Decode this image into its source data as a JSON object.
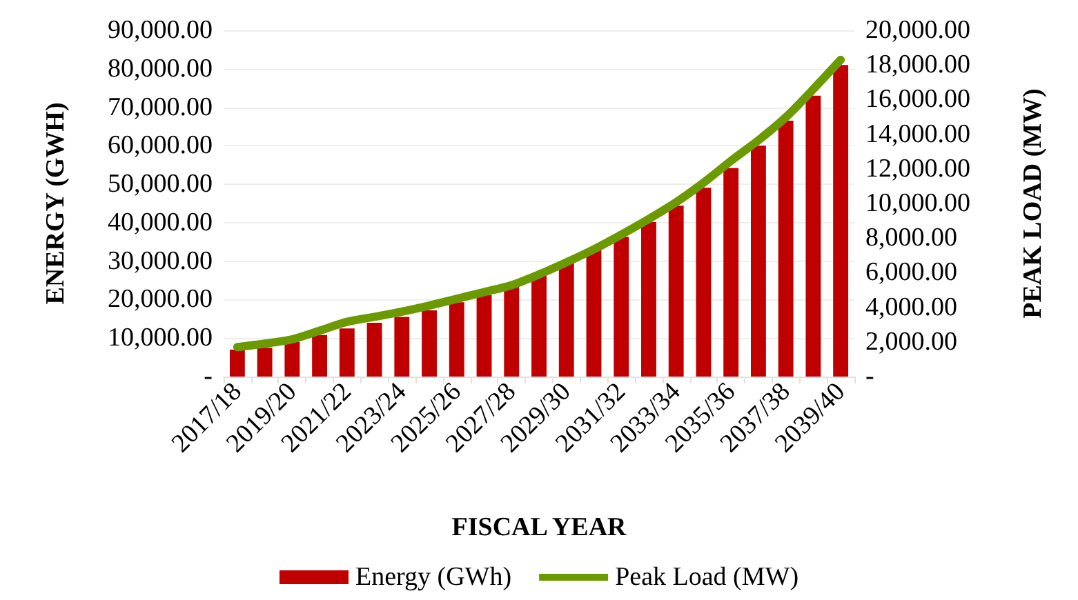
{
  "chart_data": {
    "type": "bar",
    "xlabel": "FISCAL YEAR",
    "ylabel": "ENERGY (GWH)",
    "y2label": "PEAK LOAD (MW)",
    "categories": [
      "2017/18",
      null,
      "2019/20",
      null,
      "2021/22",
      null,
      "2023/24",
      null,
      "2025/26",
      null,
      "2027/28",
      null,
      "2029/30",
      null,
      "2031/32",
      null,
      "2033/34",
      null,
      "2035/36",
      null,
      "2037/38",
      null,
      "2039/40"
    ],
    "series": [
      {
        "name": "Energy (GWh)",
        "color": "#c00000",
        "values": [
          7000,
          7500,
          9000,
          10800,
          12500,
          14000,
          15500,
          17200,
          19300,
          21200,
          23800,
          26500,
          29500,
          32800,
          36300,
          40200,
          44400,
          49100,
          54200,
          60000,
          66500,
          73000,
          81000
        ]
      },
      {
        "name": "Peak Load (MW)",
        "type": "line",
        "axis": "y2",
        "color": "#6a9a00",
        "marker": "none",
        "line_style": "solid",
        "values": [
          1700,
          1900,
          2150,
          2650,
          3160,
          3450,
          3750,
          4100,
          4490,
          4880,
          5280,
          5900,
          6600,
          7350,
          8200,
          9100,
          10070,
          11200,
          12460,
          13650,
          14980,
          16600,
          18300
        ]
      }
    ],
    "ylim": [
      0,
      90000
    ],
    "yticks": [
      {
        "value": 0,
        "label": "-"
      },
      {
        "value": 10000,
        "label": "10,000.00"
      },
      {
        "value": 20000,
        "label": "20,000.00"
      },
      {
        "value": 30000,
        "label": "30,000.00"
      },
      {
        "value": 40000,
        "label": "40,000.00"
      },
      {
        "value": 50000,
        "label": "50,000.00"
      },
      {
        "value": 60000,
        "label": "60,000.00"
      },
      {
        "value": 70000,
        "label": "70,000.00"
      },
      {
        "value": 80000,
        "label": "80,000.00"
      },
      {
        "value": 90000,
        "label": "90,000.00"
      }
    ],
    "y2lim": [
      0,
      20000
    ],
    "y2ticks": [
      {
        "value": 0,
        "label": "-"
      },
      {
        "value": 2000,
        "label": "2,000.00"
      },
      {
        "value": 4000,
        "label": "4,000.00"
      },
      {
        "value": 6000,
        "label": "6,000.00"
      },
      {
        "value": 8000,
        "label": "8,000.00"
      },
      {
        "value": 10000,
        "label": "10,000.00"
      },
      {
        "value": 12000,
        "label": "12,000.00"
      },
      {
        "value": 14000,
        "label": "14,000.00"
      },
      {
        "value": 16000,
        "label": "16,000.00"
      },
      {
        "value": 18000,
        "label": "18,000.00"
      },
      {
        "value": 20000,
        "label": "20,000.00"
      }
    ],
    "grid": "y",
    "legend": "bottom"
  }
}
